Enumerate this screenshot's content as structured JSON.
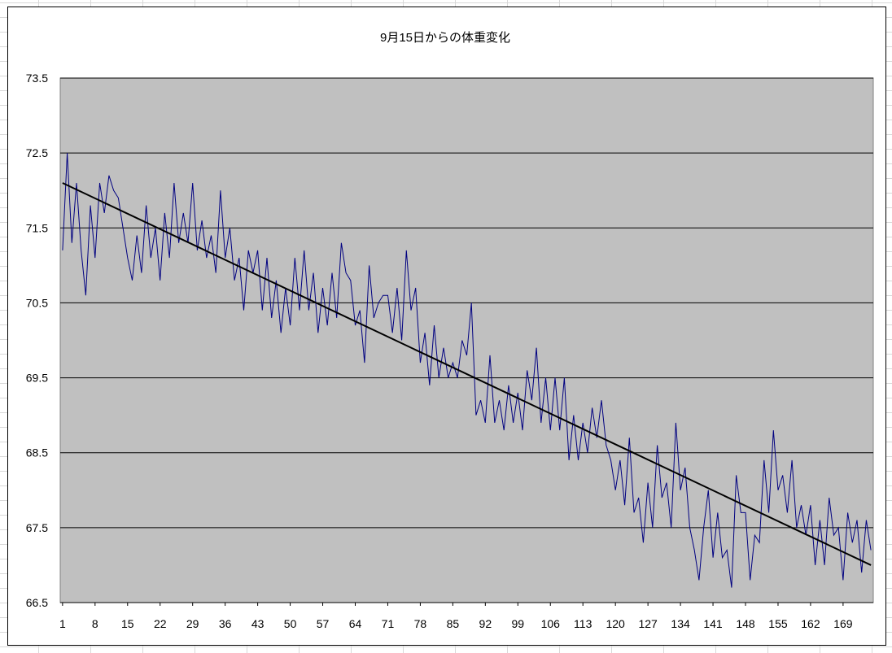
{
  "chart_data": {
    "type": "line",
    "title": "9月15日からの体重変化",
    "xlabel": "",
    "ylabel": "",
    "ylim": [
      66.5,
      73.5
    ],
    "y_ticks": [
      "66.5",
      "67.5",
      "68.5",
      "69.5",
      "70.5",
      "71.5",
      "72.5",
      "73.5"
    ],
    "x_ticks": [
      "1",
      "8",
      "15",
      "22",
      "29",
      "36",
      "43",
      "50",
      "57",
      "64",
      "71",
      "78",
      "85",
      "92",
      "99",
      "106",
      "113",
      "120",
      "127",
      "134",
      "141",
      "148",
      "155",
      "162",
      "169"
    ],
    "plot_background": "#c0c0c0",
    "grid": "horizontal",
    "legend": "none",
    "series": [
      {
        "color": "#000080",
        "x_start": 1,
        "values": [
          71.2,
          72.5,
          71.3,
          72.1,
          71.2,
          70.6,
          71.8,
          71.1,
          72.1,
          71.7,
          72.2,
          72.0,
          71.9,
          71.5,
          71.1,
          70.8,
          71.4,
          70.9,
          71.8,
          71.1,
          71.5,
          70.8,
          71.7,
          71.1,
          72.1,
          71.3,
          71.7,
          71.3,
          72.1,
          71.2,
          71.6,
          71.1,
          71.4,
          70.9,
          72.0,
          71.1,
          71.5,
          70.8,
          71.1,
          70.4,
          71.2,
          70.9,
          71.2,
          70.4,
          71.1,
          70.3,
          70.8,
          70.1,
          70.7,
          70.2,
          71.1,
          70.4,
          71.2,
          70.4,
          70.9,
          70.1,
          70.7,
          70.2,
          70.9,
          70.3,
          71.3,
          70.9,
          70.8,
          70.2,
          70.4,
          69.7,
          71.0,
          70.3,
          70.5,
          70.6,
          70.6,
          70.1,
          70.7,
          70.0,
          71.2,
          70.4,
          70.7,
          69.7,
          70.1,
          69.4,
          70.2,
          69.5,
          69.9,
          69.5,
          69.7,
          69.5,
          70.0,
          69.8,
          70.5,
          69.0,
          69.2,
          68.9,
          69.8,
          68.9,
          69.2,
          68.8,
          69.4,
          68.9,
          69.3,
          68.8,
          69.6,
          69.2,
          69.9,
          68.9,
          69.5,
          68.8,
          69.5,
          68.8,
          69.5,
          68.4,
          69.0,
          68.4,
          68.9,
          68.5,
          69.1,
          68.7,
          69.2,
          68.6,
          68.4,
          68.0,
          68.4,
          67.8,
          68.7,
          67.7,
          67.9,
          67.3,
          68.1,
          67.5,
          68.6,
          67.9,
          68.1,
          67.5,
          68.9,
          68.0,
          68.3,
          67.5,
          67.2,
          66.8,
          67.5,
          68.0,
          67.1,
          67.7,
          67.1,
          67.2,
          66.7,
          68.2,
          67.7,
          67.7,
          66.8,
          67.4,
          67.3,
          68.4,
          67.7,
          68.8,
          68.0,
          68.2,
          67.7,
          68.4,
          67.5,
          67.8,
          67.4,
          67.8,
          67.0,
          67.6,
          67.0,
          67.9,
          67.4,
          67.5,
          66.8,
          67.7,
          67.3,
          67.6,
          66.9,
          67.6,
          67.2
        ]
      }
    ],
    "trendline": {
      "color": "#000000",
      "start": 72.1,
      "end": 67.0
    }
  }
}
